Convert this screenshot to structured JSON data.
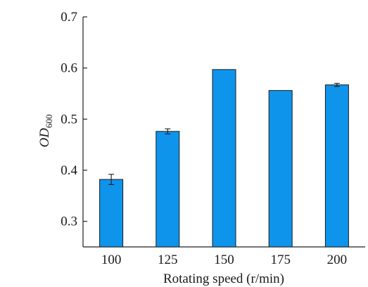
{
  "chart_data": {
    "type": "bar",
    "categories": [
      "100",
      "125",
      "150",
      "175",
      "200"
    ],
    "values": [
      0.382,
      0.476,
      0.597,
      0.556,
      0.567
    ],
    "errors": [
      0.01,
      0.005,
      0.0,
      0.0,
      0.003
    ],
    "xlabel": "Rotating speed (r/min)",
    "ylabel": {
      "main": "OD",
      "sub": "600"
    },
    "ylim": [
      0.25,
      0.7
    ],
    "yticks": [
      "0.3",
      "0.4",
      "0.5",
      "0.6",
      "0.7"
    ],
    "bar_color": "#0f94ec",
    "grid": false
  }
}
